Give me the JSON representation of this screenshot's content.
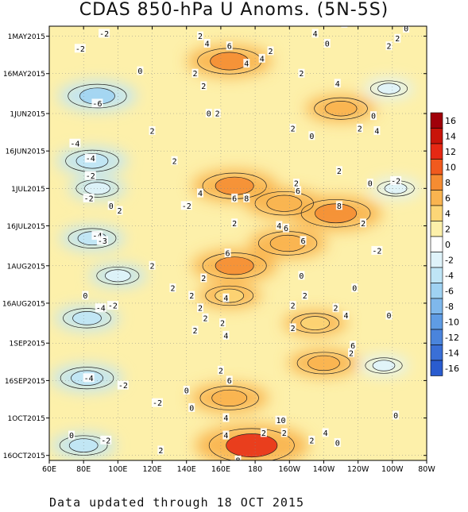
{
  "chart_data": {
    "type": "heatmap",
    "title": "CDAS 850-hPa U Anoms. (5N-5S)",
    "xlabel": "",
    "ylabel": "",
    "x_ticks": [
      "60E",
      "80E",
      "100E",
      "120E",
      "140E",
      "160E",
      "180",
      "160W",
      "140W",
      "120W",
      "100W",
      "80W"
    ],
    "x_range_deg_east": [
      60,
      280
    ],
    "y_ticks": [
      "1MAY2015",
      "16MAY2015",
      "1JUN2015",
      "16JUN2015",
      "1JUL2015",
      "16JUL2015",
      "1AUG2015",
      "16AUG2015",
      "1SEP2015",
      "16SEP2015",
      "1OCT2015",
      "16OCT2015"
    ],
    "y_range": [
      "2015-04-27",
      "2015-10-18"
    ],
    "colorbar": {
      "labels": [
        "16",
        "14",
        "12",
        "10",
        "8",
        "6",
        "4",
        "2",
        "0",
        "-2",
        "-4",
        "-6",
        "-8",
        "-10",
        "-12",
        "-14",
        "-16"
      ],
      "colors": [
        "#a0000a",
        "#c8140a",
        "#e62814",
        "#f05a1e",
        "#f58c32",
        "#f9b450",
        "#fcd677",
        "#fdf0aa",
        "#ffffff",
        "#dff3fa",
        "#bfe5f6",
        "#9fd2f2",
        "#7fb8ec",
        "#5f9ce4",
        "#4a84dc",
        "#3a6fd6",
        "#2a5ccf"
      ],
      "contour_interval": 2
    },
    "anomaly_centers": [
      {
        "lon_deg_east": 165,
        "date": "2015-05-11",
        "value": 7
      },
      {
        "lon_deg_east": 230,
        "date": "2015-05-30",
        "value": 5
      },
      {
        "lon_deg_east": 168,
        "date": "2015-06-30",
        "value": 7
      },
      {
        "lon_deg_east": 197,
        "date": "2015-07-07",
        "value": 6
      },
      {
        "lon_deg_east": 227,
        "date": "2015-07-11",
        "value": 8
      },
      {
        "lon_deg_east": 199,
        "date": "2015-07-23",
        "value": 6
      },
      {
        "lon_deg_east": 168,
        "date": "2015-08-01",
        "value": 7
      },
      {
        "lon_deg_east": 165,
        "date": "2015-08-13",
        "value": 4
      },
      {
        "lon_deg_east": 215,
        "date": "2015-08-24",
        "value": 4
      },
      {
        "lon_deg_east": 220,
        "date": "2015-09-09",
        "value": 5
      },
      {
        "lon_deg_east": 165,
        "date": "2015-09-23",
        "value": 6
      },
      {
        "lon_deg_east": 178,
        "date": "2015-10-12",
        "value": 11
      },
      {
        "lon_deg_east": 88,
        "date": "2015-05-25",
        "value": -6
      },
      {
        "lon_deg_east": 85,
        "date": "2015-06-20",
        "value": -5
      },
      {
        "lon_deg_east": 88,
        "date": "2015-07-01",
        "value": -3
      },
      {
        "lon_deg_east": 85,
        "date": "2015-07-21",
        "value": -4
      },
      {
        "lon_deg_east": 100,
        "date": "2015-08-05",
        "value": -3
      },
      {
        "lon_deg_east": 82,
        "date": "2015-08-22",
        "value": -4
      },
      {
        "lon_deg_east": 82,
        "date": "2015-09-15",
        "value": -5
      },
      {
        "lon_deg_east": 80,
        "date": "2015-10-12",
        "value": -4
      },
      {
        "lon_deg_east": 258,
        "date": "2015-05-22",
        "value": -2
      },
      {
        "lon_deg_east": 262,
        "date": "2015-07-01",
        "value": -2
      },
      {
        "lon_deg_east": 255,
        "date": "2015-09-10",
        "value": -2
      }
    ],
    "contour_labels": [
      {
        "text": "-2",
        "lon": 92,
        "date": "2015-04-30"
      },
      {
        "text": "-2",
        "lon": 78,
        "date": "2015-05-06"
      },
      {
        "text": "2",
        "lon": 148,
        "date": "2015-05-01"
      },
      {
        "text": "4",
        "lon": 152,
        "date": "2015-05-04"
      },
      {
        "text": "6",
        "lon": 165,
        "date": "2015-05-05"
      },
      {
        "text": "4",
        "lon": 175,
        "date": "2015-05-12"
      },
      {
        "text": "4",
        "lon": 184,
        "date": "2015-05-10"
      },
      {
        "text": "2",
        "lon": 189,
        "date": "2015-05-07"
      },
      {
        "text": "2",
        "lon": 232,
        "date": "2015-04-26"
      },
      {
        "text": "4",
        "lon": 215,
        "date": "2015-04-30"
      },
      {
        "text": "0",
        "lon": 222,
        "date": "2015-05-04"
      },
      {
        "text": "2",
        "lon": 258,
        "date": "2015-05-05"
      },
      {
        "text": "2",
        "lon": 263,
        "date": "2015-05-02"
      },
      {
        "text": "0",
        "lon": 268,
        "date": "2015-04-28"
      },
      {
        "text": "0",
        "lon": 113,
        "date": "2015-05-15"
      },
      {
        "text": "2",
        "lon": 145,
        "date": "2015-05-16"
      },
      {
        "text": "2",
        "lon": 150,
        "date": "2015-05-21"
      },
      {
        "text": "2",
        "lon": 207,
        "date": "2015-05-16"
      },
      {
        "text": "4",
        "lon": 228,
        "date": "2015-05-20"
      },
      {
        "text": "-6",
        "lon": 88,
        "date": "2015-05-28"
      },
      {
        "text": "0",
        "lon": 153,
        "date": "2015-06-01"
      },
      {
        "text": "2",
        "lon": 158,
        "date": "2015-06-01"
      },
      {
        "text": "2",
        "lon": 202,
        "date": "2015-06-07"
      },
      {
        "text": "0",
        "lon": 249,
        "date": "2015-06-02"
      },
      {
        "text": "2",
        "lon": 241,
        "date": "2015-06-07"
      },
      {
        "text": "4",
        "lon": 251,
        "date": "2015-06-08"
      },
      {
        "text": "0",
        "lon": 213,
        "date": "2015-06-10"
      },
      {
        "text": "2",
        "lon": 120,
        "date": "2015-06-08"
      },
      {
        "text": "-4",
        "lon": 75,
        "date": "2015-06-13"
      },
      {
        "text": "-4",
        "lon": 84,
        "date": "2015-06-19"
      },
      {
        "text": "2",
        "lon": 133,
        "date": "2015-06-20"
      },
      {
        "text": "-2",
        "lon": 84,
        "date": "2015-06-26"
      },
      {
        "text": "4",
        "lon": 148,
        "date": "2015-07-03"
      },
      {
        "text": "6",
        "lon": 168,
        "date": "2015-07-05"
      },
      {
        "text": "8",
        "lon": 175,
        "date": "2015-07-05"
      },
      {
        "text": "-2",
        "lon": 83,
        "date": "2015-07-05"
      },
      {
        "text": "2",
        "lon": 229,
        "date": "2015-06-24"
      },
      {
        "text": "-2",
        "lon": 262,
        "date": "2015-06-28"
      },
      {
        "text": "0",
        "lon": 247,
        "date": "2015-06-29"
      },
      {
        "text": "6",
        "lon": 205,
        "date": "2015-07-02"
      },
      {
        "text": "2",
        "lon": 204,
        "date": "2015-06-29"
      },
      {
        "text": "-2",
        "lon": 140,
        "date": "2015-07-08"
      },
      {
        "text": "0",
        "lon": 96,
        "date": "2015-07-08"
      },
      {
        "text": "2",
        "lon": 101,
        "date": "2015-07-10"
      },
      {
        "text": "8",
        "lon": 229,
        "date": "2015-07-08"
      },
      {
        "text": "2",
        "lon": 243,
        "date": "2015-07-15"
      },
      {
        "text": "2",
        "lon": 168,
        "date": "2015-07-15"
      },
      {
        "text": "4",
        "lon": 194,
        "date": "2015-07-16"
      },
      {
        "text": "6",
        "lon": 198,
        "date": "2015-07-17"
      },
      {
        "text": "-4",
        "lon": 88,
        "date": "2015-07-20"
      },
      {
        "text": "-3",
        "lon": 91,
        "date": "2015-07-22"
      },
      {
        "text": "6",
        "lon": 208,
        "date": "2015-07-22"
      },
      {
        "text": "6",
        "lon": 164,
        "date": "2015-07-27"
      },
      {
        "text": "-2",
        "lon": 251,
        "date": "2015-07-26"
      },
      {
        "text": "2",
        "lon": 120,
        "date": "2015-08-01"
      },
      {
        "text": "2",
        "lon": 150,
        "date": "2015-08-06"
      },
      {
        "text": "0",
        "lon": 207,
        "date": "2015-08-05"
      },
      {
        "text": "0",
        "lon": 238,
        "date": "2015-08-10"
      },
      {
        "text": "0",
        "lon": 81,
        "date": "2015-08-13"
      },
      {
        "text": "2",
        "lon": 132,
        "date": "2015-08-10"
      },
      {
        "text": "4",
        "lon": 163,
        "date": "2015-08-14"
      },
      {
        "text": "2",
        "lon": 143,
        "date": "2015-08-13"
      },
      {
        "text": "2",
        "lon": 209,
        "date": "2015-08-13"
      },
      {
        "text": "-2",
        "lon": 97,
        "date": "2015-08-17"
      },
      {
        "text": "-4",
        "lon": 90,
        "date": "2015-08-18"
      },
      {
        "text": "2",
        "lon": 148,
        "date": "2015-08-18"
      },
      {
        "text": "2",
        "lon": 202,
        "date": "2015-08-17"
      },
      {
        "text": "2",
        "lon": 227,
        "date": "2015-08-18"
      },
      {
        "text": "4",
        "lon": 233,
        "date": "2015-08-21"
      },
      {
        "text": "0",
        "lon": 258,
        "date": "2015-08-21"
      },
      {
        "text": "2",
        "lon": 151,
        "date": "2015-08-22"
      },
      {
        "text": "2",
        "lon": 161,
        "date": "2015-08-24"
      },
      {
        "text": "2",
        "lon": 145,
        "date": "2015-08-27"
      },
      {
        "text": "4",
        "lon": 163,
        "date": "2015-08-29"
      },
      {
        "text": "2",
        "lon": 202,
        "date": "2015-08-26"
      },
      {
        "text": "6",
        "lon": 237,
        "date": "2015-09-02"
      },
      {
        "text": "2",
        "lon": 236,
        "date": "2015-09-05"
      },
      {
        "text": "-2",
        "lon": 103,
        "date": "2015-09-18"
      },
      {
        "text": "-4",
        "lon": 83,
        "date": "2015-09-15"
      },
      {
        "text": "2",
        "lon": 160,
        "date": "2015-09-12"
      },
      {
        "text": "6",
        "lon": 165,
        "date": "2015-09-16"
      },
      {
        "text": "0",
        "lon": 140,
        "date": "2015-09-20"
      },
      {
        "text": "-2",
        "lon": 123,
        "date": "2015-09-25"
      },
      {
        "text": "0",
        "lon": 143,
        "date": "2015-09-27"
      },
      {
        "text": "4",
        "lon": 163,
        "date": "2015-10-01"
      },
      {
        "text": "10",
        "lon": 195,
        "date": "2015-10-02"
      },
      {
        "text": "2",
        "lon": 197,
        "date": "2015-10-07"
      },
      {
        "text": "4",
        "lon": 221,
        "date": "2015-10-07"
      },
      {
        "text": "0",
        "lon": 228,
        "date": "2015-10-11"
      },
      {
        "text": "2",
        "lon": 213,
        "date": "2015-10-10"
      },
      {
        "text": "0",
        "lon": 262,
        "date": "2015-09-30"
      },
      {
        "text": "4",
        "lon": 163,
        "date": "2015-10-08"
      },
      {
        "text": "2",
        "lon": 185,
        "date": "2015-10-07"
      },
      {
        "text": "-2",
        "lon": 93,
        "date": "2015-10-10"
      },
      {
        "text": "0",
        "lon": 73,
        "date": "2015-10-08"
      },
      {
        "text": "2",
        "lon": 125,
        "date": "2015-10-14"
      },
      {
        "text": "8",
        "lon": 170,
        "date": "2015-10-18"
      }
    ]
  },
  "footer_text": "Data updated through 18 OCT 2015"
}
